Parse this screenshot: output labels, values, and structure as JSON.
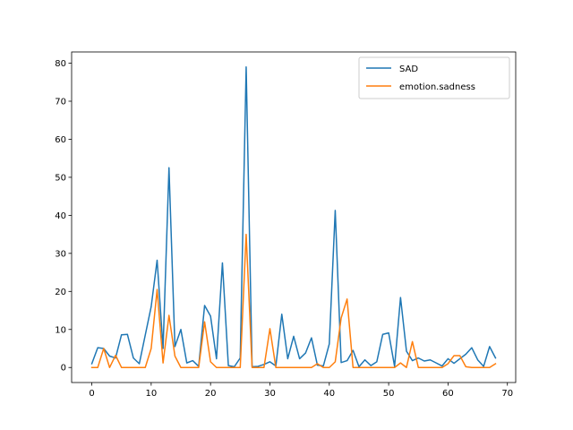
{
  "chart_data": {
    "type": "line",
    "title": "",
    "xlabel": "",
    "ylabel": "",
    "xlim": [
      -3.4,
      71.4
    ],
    "ylim": [
      -3.95,
      82.95
    ],
    "xticks": [
      0,
      10,
      20,
      30,
      40,
      50,
      60,
      70
    ],
    "yticks": [
      0,
      10,
      20,
      30,
      40,
      50,
      60,
      70,
      80
    ],
    "grid": false,
    "legend": "top-right",
    "x": [
      0,
      1,
      2,
      3,
      4,
      5,
      6,
      7,
      8,
      9,
      10,
      11,
      12,
      13,
      14,
      15,
      16,
      17,
      18,
      19,
      20,
      21,
      22,
      23,
      24,
      25,
      26,
      27,
      28,
      29,
      30,
      31,
      32,
      33,
      34,
      35,
      36,
      37,
      38,
      39,
      40,
      41,
      42,
      43,
      44,
      45,
      46,
      47,
      48,
      49,
      50,
      51,
      52,
      53,
      54,
      55,
      56,
      57,
      58,
      59,
      60,
      61,
      62,
      63,
      64,
      65,
      66,
      67,
      68
    ],
    "series": [
      {
        "name": "SAD",
        "color": "#1f77b4",
        "values": [
          1,
          5.2,
          5,
          3,
          2.5,
          8.6,
          8.7,
          2.5,
          1,
          8.5,
          16,
          28.2,
          5,
          52.5,
          5.5,
          10,
          1.2,
          1.8,
          0.3,
          16.3,
          13.5,
          2.3,
          27.5,
          0.5,
          0.2,
          2.5,
          79,
          0.2,
          0.3,
          0.8,
          1.5,
          0.4,
          14,
          2.3,
          8.2,
          2.3,
          3.8,
          7.8,
          0.6,
          0.4,
          6.2,
          41.3,
          1.3,
          1.8,
          4.5,
          0.2,
          2,
          0.5,
          1.5,
          8.7,
          9.1,
          0.3,
          18.4,
          4.3,
          1.8,
          2.5,
          1.7,
          2,
          1.2,
          0.4,
          2.3,
          1.1,
          2.3,
          3.5,
          5.2,
          2,
          0.3,
          5.5,
          2.5
        ]
      },
      {
        "name": "emotion.sadness",
        "color": "#ff7f0e",
        "values": [
          0,
          0,
          5,
          0,
          3.2,
          0,
          0,
          0,
          0,
          0,
          5,
          20.5,
          1.2,
          13.7,
          3,
          0,
          0,
          0,
          0,
          12,
          1.5,
          0,
          0,
          0,
          0,
          0,
          35,
          0,
          0,
          0,
          10.2,
          0,
          0,
          0,
          0,
          0,
          0,
          0,
          1,
          0,
          0,
          1.5,
          13,
          18,
          0,
          0,
          0,
          0,
          0,
          0,
          0,
          0,
          1.2,
          0,
          6.8,
          0,
          0,
          0,
          0,
          0,
          1,
          3.1,
          3.1,
          0.2,
          0,
          0,
          0,
          0,
          1
        ]
      }
    ]
  }
}
